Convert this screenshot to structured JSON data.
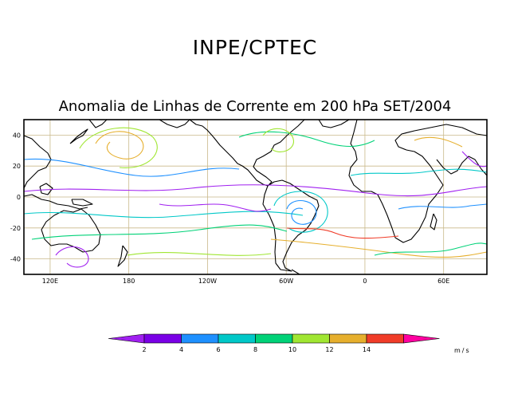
{
  "header": {
    "title": "INPE/CPTEC",
    "subtitle": "Anomalia de Linhas de Corrente em 200 hPa SET/2004"
  },
  "map": {
    "lon_ticks": [
      "120E",
      "180",
      "120W",
      "60W",
      "0",
      "60E"
    ],
    "lat_ticks": [
      "40",
      "20",
      "0",
      "-20",
      "-40"
    ],
    "lon_tick_values": [
      120,
      180,
      240,
      300,
      360,
      420
    ],
    "lat_tick_values": [
      40,
      20,
      0,
      -20,
      -40
    ],
    "lon_range": [
      100,
      453
    ],
    "lat_range": [
      -50,
      50
    ]
  },
  "colorbar": {
    "labels": [
      "2",
      "4",
      "6",
      "8",
      "10",
      "12",
      "14"
    ],
    "colors": [
      "#a020f0",
      "#7a00e6",
      "#1e90ff",
      "#00c8c8",
      "#00d278",
      "#a0e632",
      "#e6af2d",
      "#f03c28",
      "#ff00a0"
    ],
    "units": "m/s"
  }
}
